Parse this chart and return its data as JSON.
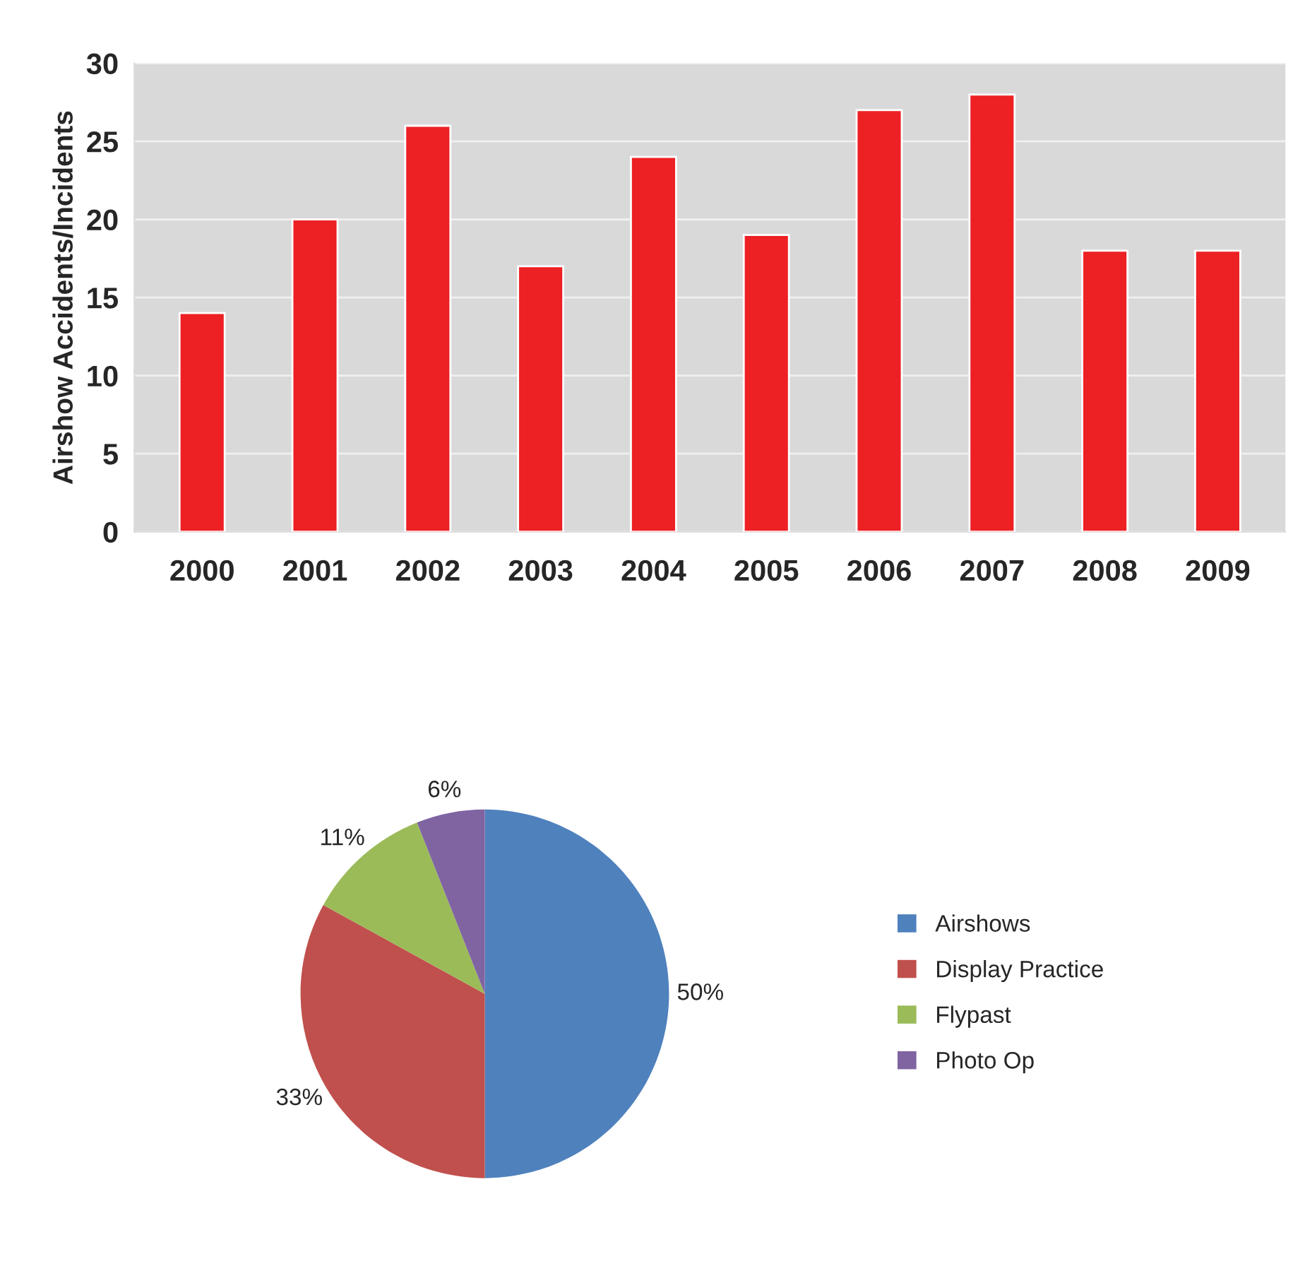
{
  "chart_data": [
    {
      "type": "bar",
      "ylabel": "Airshow Accidents/Incidents",
      "categories": [
        "2000",
        "2001",
        "2002",
        "2003",
        "2004",
        "2005",
        "2006",
        "2007",
        "2008",
        "2009"
      ],
      "values": [
        14,
        20,
        26,
        17,
        24,
        19,
        27,
        28,
        18,
        18
      ],
      "color": "#ed2024",
      "ylim": [
        0,
        30
      ],
      "yticks": [
        0,
        5,
        10,
        15,
        20,
        25,
        30
      ],
      "grid": "y"
    },
    {
      "type": "pie",
      "categories": [
        "Airshows",
        "Display Practice",
        "Flypast",
        "Photo Op"
      ],
      "values": [
        50,
        33,
        11,
        6
      ],
      "colors": [
        "#4f81bd",
        "#c0504d",
        "#9bbb59",
        "#8064a2"
      ],
      "value_labels": [
        "50%",
        "33%",
        "11%",
        "6%"
      ],
      "legend": "right"
    }
  ]
}
